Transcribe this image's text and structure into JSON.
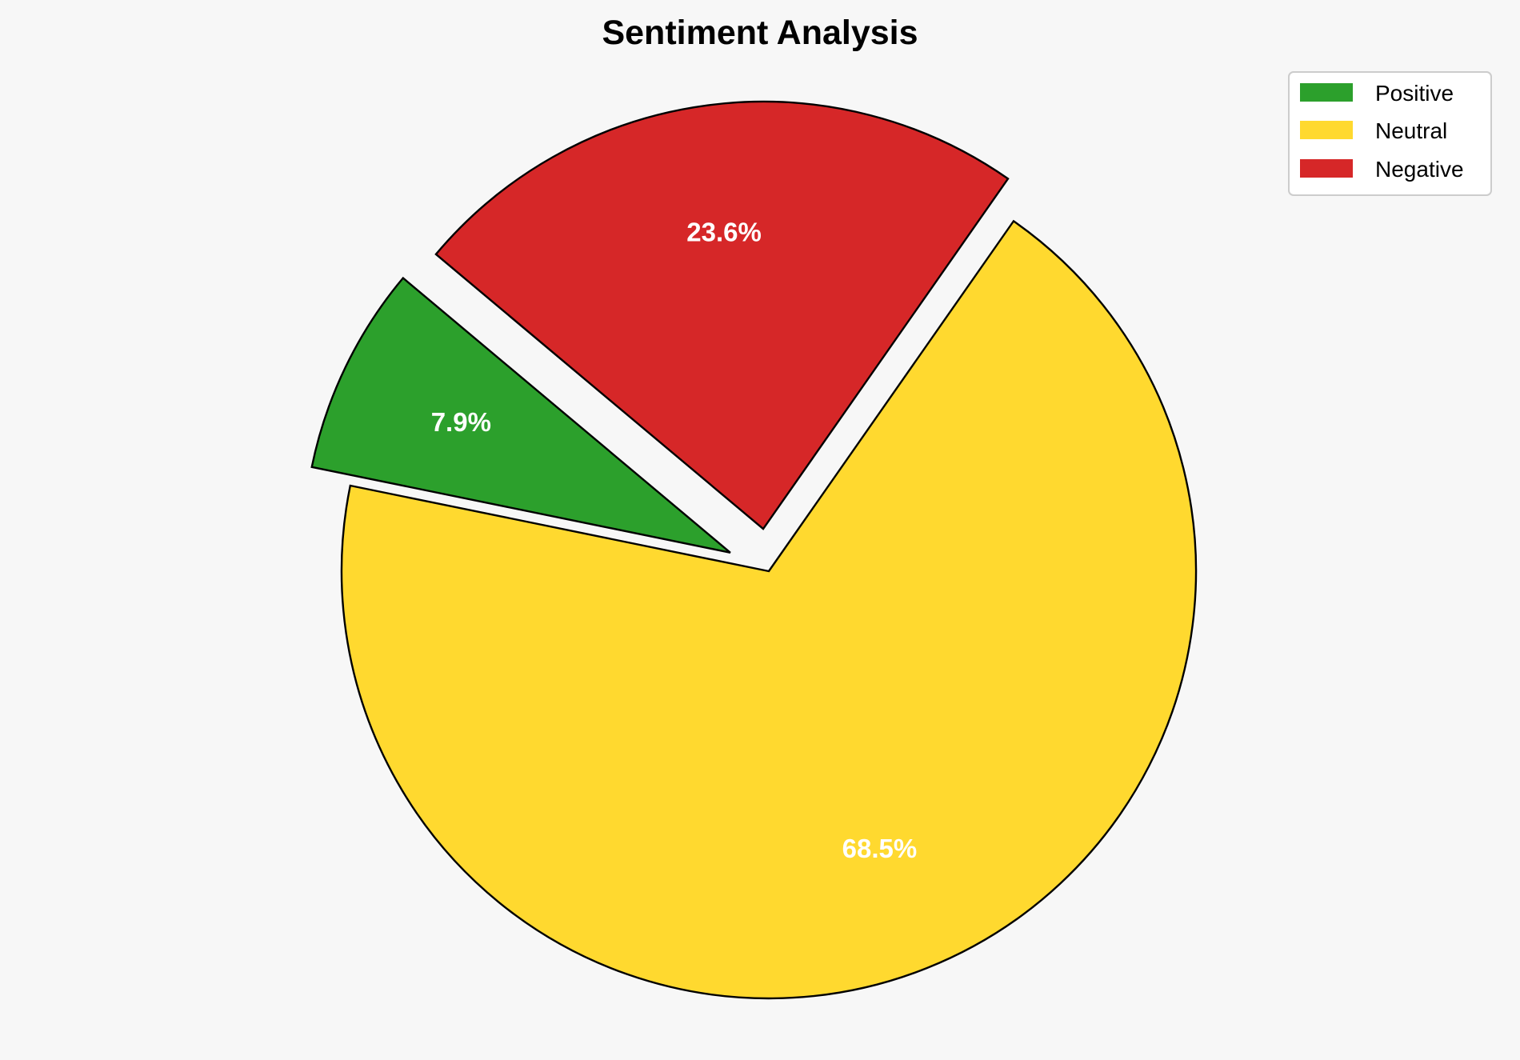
{
  "chart_data": {
    "type": "pie",
    "title": "Sentiment Analysis",
    "categories": [
      "Positive",
      "Neutral",
      "Negative"
    ],
    "values": [
      7.9,
      68.5,
      23.6
    ],
    "labels": [
      "7.9%",
      "68.5%",
      "23.6%"
    ],
    "colors": [
      "#2ca02c",
      "#ffd92f",
      "#d62728"
    ],
    "explode": [
      0.1,
      0,
      0.1
    ],
    "start_angle_deg": 140,
    "direction": "counterclockwise",
    "edge_color": "#000000",
    "legend": {
      "placement": "top-right",
      "entries": [
        "Positive",
        "Neutral",
        "Negative"
      ]
    }
  }
}
